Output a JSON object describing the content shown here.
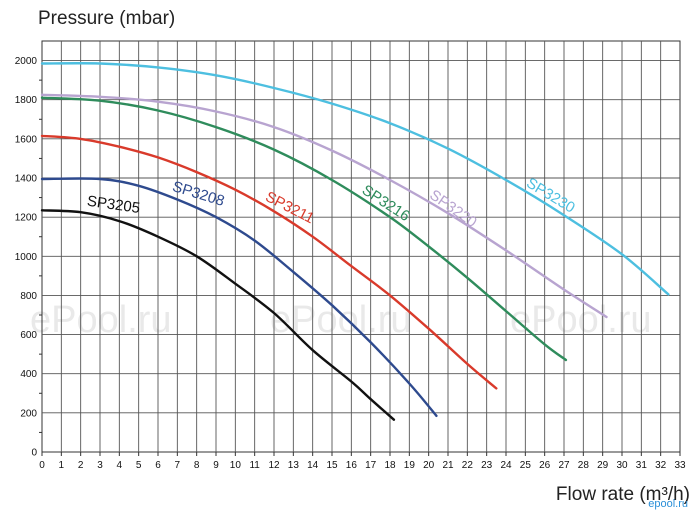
{
  "chart_data": {
    "type": "line",
    "title": "",
    "ylabel": "Pressure (mbar)",
    "xlabel": "Flow rate (m³/h)",
    "xlim": [
      0,
      33
    ],
    "ylim": [
      0,
      2100
    ],
    "x_ticks": [
      "0",
      "1",
      "2",
      "3",
      "4",
      "5",
      "6",
      "7",
      "8",
      "9",
      "10",
      "11",
      "12",
      "13",
      "14",
      "15",
      "16",
      "17",
      "18",
      "19",
      "20",
      "21",
      "22",
      "23",
      "24",
      "25",
      "26",
      "27",
      "28",
      "29",
      "30",
      "31",
      "32",
      "33"
    ],
    "y_ticks": [
      "0",
      "200",
      "400",
      "600",
      "800",
      "1000",
      "1200",
      "1400",
      "1600",
      "1800",
      "2000"
    ],
    "grid": true,
    "series": [
      {
        "name": "SP3205",
        "color": "#111111",
        "x": [
          0,
          2,
          4,
          6,
          8,
          10,
          12,
          14,
          16,
          17,
          18.2
        ],
        "y": [
          1235,
          1225,
          1180,
          1100,
          1000,
          860,
          710,
          520,
          360,
          270,
          165
        ]
      },
      {
        "name": "SP3208",
        "color": "#2e4a8e",
        "x": [
          0,
          3,
          5,
          7,
          9,
          11,
          13,
          15,
          17,
          19,
          20.4
        ],
        "y": [
          1395,
          1395,
          1360,
          1290,
          1200,
          1080,
          920,
          750,
          560,
          350,
          185
        ]
      },
      {
        "name": "SP3211",
        "color": "#d93a2b",
        "x": [
          0,
          2,
          4,
          6,
          8,
          10,
          12,
          14,
          16,
          18,
          20,
          22,
          23.5
        ],
        "y": [
          1615,
          1600,
          1560,
          1505,
          1430,
          1340,
          1230,
          1100,
          950,
          800,
          630,
          450,
          325
        ]
      },
      {
        "name": "SP3216",
        "color": "#2f8c5c",
        "x": [
          0,
          3,
          6,
          9,
          12,
          15,
          18,
          20,
          22,
          24,
          26,
          27.1
        ],
        "y": [
          1810,
          1795,
          1745,
          1660,
          1545,
          1390,
          1200,
          1050,
          890,
          720,
          550,
          470
        ]
      },
      {
        "name": "SP3220",
        "color": "#b8a4d0",
        "x": [
          0,
          3,
          6,
          9,
          12,
          15,
          18,
          21,
          24,
          27,
          29.2
        ],
        "y": [
          1825,
          1815,
          1790,
          1740,
          1660,
          1540,
          1390,
          1220,
          1030,
          830,
          690
        ]
      },
      {
        "name": "SP3230",
        "color": "#4dbfe0",
        "x": [
          0,
          3,
          6,
          9,
          12,
          15,
          18,
          21,
          24,
          27,
          30,
          32.4
        ],
        "y": [
          1985,
          1985,
          1965,
          1925,
          1860,
          1780,
          1680,
          1550,
          1390,
          1210,
          1010,
          805
        ]
      }
    ]
  },
  "watermark": {
    "text": "ePool.ru",
    "footer": "epool.ru"
  }
}
